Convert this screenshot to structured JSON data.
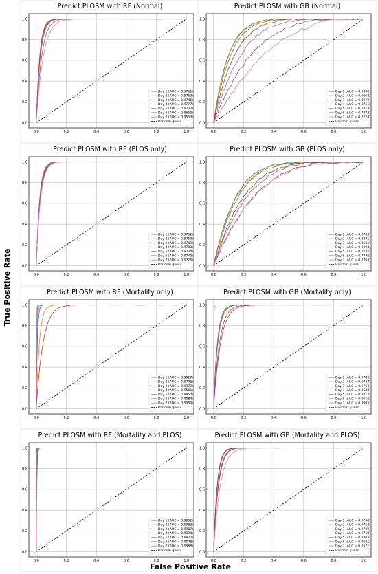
{
  "figure": {
    "ylabel": "True Positive Rate",
    "xlabel": "False Positive Rate"
  },
  "series_colors": [
    "#1f77b4",
    "#ff7f0e",
    "#2ca02c",
    "#d62728",
    "#9467bd",
    "#8c564b",
    "#e377c2"
  ],
  "random_guess_color": "#000000",
  "chart_data": [
    {
      "type": "line",
      "title": "Predict PLOSM with RF (Normal)",
      "xlim": [
        0,
        1
      ],
      "ylim": [
        0,
        1
      ],
      "x_ticks": [
        "0.0",
        "0.2",
        "0.4",
        "0.6",
        "0.8",
        "1.0"
      ],
      "y_ticks": [
        "0.0",
        "0.2",
        "0.4",
        "0.6",
        "0.8",
        "1.0"
      ],
      "grid": true,
      "legend_position": "lower-right",
      "series": [
        {
          "name": "Day 1 (AUC = 0.9761)",
          "auc": 0.9761
        },
        {
          "name": "Day 2 (AUC = 0.9763)",
          "auc": 0.9763
        },
        {
          "name": "Day 3 (AUC = 0.9746)",
          "auc": 0.9746
        },
        {
          "name": "Day 4 (AUC = 0.9777)",
          "auc": 0.9777
        },
        {
          "name": "Day 5 (AUC = 0.9732)",
          "auc": 0.9732
        },
        {
          "name": "Day 6 (AUC = 0.9653)",
          "auc": 0.9653
        },
        {
          "name": "Day 7 (AUC = 0.9553)",
          "auc": 0.9553
        }
      ],
      "baseline": {
        "name": "Random guess",
        "x": [
          0,
          1
        ],
        "y": [
          0,
          1
        ]
      }
    },
    {
      "type": "line",
      "title": "Predict PLOSM with GB (Normal)",
      "xlim": [
        0,
        1
      ],
      "ylim": [
        0,
        1
      ],
      "x_ticks": [
        "0.0",
        "0.2",
        "0.4",
        "0.6",
        "0.8",
        "1.0"
      ],
      "y_ticks": [
        "0.0",
        "0.2",
        "0.4",
        "0.6",
        "0.8",
        "1.0"
      ],
      "grid": true,
      "legend_position": "lower-right",
      "series": [
        {
          "name": "Day 1 (AUC = 0.9096)",
          "auc": 0.9096
        },
        {
          "name": "Day 2 (AUC = 0.9068)",
          "auc": 0.9068
        },
        {
          "name": "Day 3 (AUC = 0.8972)",
          "auc": 0.8972
        },
        {
          "name": "Day 4 (AUC = 0.8751)",
          "auc": 0.8751
        },
        {
          "name": "Day 5 (AUC = 0.8413)",
          "auc": 0.8413
        },
        {
          "name": "Day 6 (AUC = 0.7873)",
          "auc": 0.7873
        },
        {
          "name": "Day 7 (AUC = 0.7224)",
          "auc": 0.7224
        }
      ],
      "baseline": {
        "name": "Random guess",
        "x": [
          0,
          1
        ],
        "y": [
          0,
          1
        ]
      }
    },
    {
      "type": "line",
      "title": "Predict PLOSM with RF (PLOS only)",
      "xlim": [
        0,
        1
      ],
      "ylim": [
        0,
        1
      ],
      "x_ticks": [
        "0.0",
        "0.2",
        "0.4",
        "0.6",
        "0.8",
        "1.0"
      ],
      "y_ticks": [
        "0.0",
        "0.2",
        "0.4",
        "0.6",
        "0.8",
        "1.0"
      ],
      "grid": true,
      "legend_position": "lower-right",
      "series": [
        {
          "name": "Day 1 (AUC = 0.9762)",
          "auc": 0.9762
        },
        {
          "name": "Day 2 (AUC = 0.9759)",
          "auc": 0.9759
        },
        {
          "name": "Day 3 (AUC = 0.9749)",
          "auc": 0.9749
        },
        {
          "name": "Day 4 (AUC = 0.9783)",
          "auc": 0.9783
        },
        {
          "name": "Day 5 (AUC = 0.9774)",
          "auc": 0.9774
        },
        {
          "name": "Day 6 (AUC = 0.9740)",
          "auc": 0.974
        },
        {
          "name": "Day 7 (AUC = 0.9726)",
          "auc": 0.9726
        }
      ],
      "baseline": {
        "name": "Random guess",
        "x": [
          0,
          1
        ],
        "y": [
          0,
          1
        ]
      }
    },
    {
      "type": "line",
      "title": "Predict PLOSM with GB (PLOS only)",
      "xlim": [
        0,
        1
      ],
      "ylim": [
        0,
        1
      ],
      "x_ticks": [
        "0.0",
        "0.2",
        "0.4",
        "0.6",
        "0.8",
        "1.0"
      ],
      "y_ticks": [
        "0.0",
        "0.2",
        "0.4",
        "0.6",
        "0.8",
        "1.0"
      ],
      "grid": true,
      "legend_position": "lower-right",
      "series": [
        {
          "name": "Day 1 (AUC = 0.8709)",
          "auc": 0.8709
        },
        {
          "name": "Day 2 (AUC = 0.8671)",
          "auc": 0.8671
        },
        {
          "name": "Day 3 (AUC = 0.8581)",
          "auc": 0.8581
        },
        {
          "name": "Day 4 (AUC = 0.8298)",
          "auc": 0.8298
        },
        {
          "name": "Day 5 (AUC = 0.8126)",
          "auc": 0.8126
        },
        {
          "name": "Day 6 (AUC = 0.7776)",
          "auc": 0.7776
        },
        {
          "name": "Day 7 (AUC = 0.7763)",
          "auc": 0.7763
        }
      ],
      "baseline": {
        "name": "Random guess",
        "x": [
          0,
          1
        ],
        "y": [
          0,
          1
        ]
      }
    },
    {
      "type": "line",
      "title": "Predict PLOSM with RF (Mortality only)",
      "xlim": [
        0,
        1
      ],
      "ylim": [
        0,
        1
      ],
      "x_ticks": [
        "0.0",
        "0.2",
        "0.4",
        "0.6",
        "0.8",
        "1.0"
      ],
      "y_ticks": [
        "0.0",
        "0.2",
        "0.4",
        "0.6",
        "0.8",
        "1.0"
      ],
      "grid": true,
      "legend_position": "lower-right",
      "series": [
        {
          "name": "Day 1 (AUC = 0.9927)",
          "auc": 0.9927
        },
        {
          "name": "Day 2 (AUC = 0.9795)",
          "auc": 0.9795
        },
        {
          "name": "Day 3 (AUC = 0.9972)",
          "auc": 0.9972
        },
        {
          "name": "Day 4 (AUC = 0.9561)",
          "auc": 0.9561
        },
        {
          "name": "Day 5 (AUC = 0.9950)",
          "auc": 0.995
        },
        {
          "name": "Day 6 (AUC = 0.9984)",
          "auc": 0.9984
        },
        {
          "name": "Day 7 (AUC = 0.9980)",
          "auc": 0.998
        }
      ],
      "baseline": {
        "name": "Random guess",
        "x": [
          0,
          1
        ],
        "y": [
          0,
          1
        ]
      }
    },
    {
      "type": "line",
      "title": "Predict PLOSM with GB (Mortality only)",
      "xlim": [
        0,
        1
      ],
      "ylim": [
        0,
        1
      ],
      "x_ticks": [
        "0.0",
        "0.2",
        "0.4",
        "0.6",
        "0.8",
        "1.0"
      ],
      "y_ticks": [
        "0.0",
        "0.2",
        "0.4",
        "0.6",
        "0.8",
        "1.0"
      ],
      "grid": true,
      "legend_position": "lower-right",
      "series": [
        {
          "name": "Day 1 (AUC = 0.9745)",
          "auc": 0.9745
        },
        {
          "name": "Day 2 (AUC = 0.9737)",
          "auc": 0.9737
        },
        {
          "name": "Day 3 (AUC = 0.9753)",
          "auc": 0.9753
        },
        {
          "name": "Day 4 (AUC = 0.9548)",
          "auc": 0.9548
        },
        {
          "name": "Day 5 (AUC = 0.9717)",
          "auc": 0.9717
        },
        {
          "name": "Day 6 (AUC = 0.9616)",
          "auc": 0.9616
        },
        {
          "name": "Day 7 (AUC = 0.9985)",
          "auc": 0.9985
        }
      ],
      "baseline": {
        "name": "Random guess",
        "x": [
          0,
          1
        ],
        "y": [
          0,
          1
        ]
      }
    },
    {
      "type": "line",
      "title": "Predict PLOSM with RF (Mortality and PLOS)",
      "xlim": [
        0,
        1
      ],
      "ylim": [
        0,
        1
      ],
      "x_ticks": [
        "0.0",
        "0.2",
        "0.4",
        "0.6",
        "0.8",
        "1.0"
      ],
      "y_ticks": [
        "0.0",
        "0.2",
        "0.4",
        "0.6",
        "0.8",
        "1.0"
      ],
      "grid": true,
      "legend_position": "lower-right",
      "series": [
        {
          "name": "Day 1 (AUC = 0.9962)",
          "auc": 0.9962
        },
        {
          "name": "Day 2 (AUC = 0.9983)",
          "auc": 0.9983
        },
        {
          "name": "Day 3 (AUC = 0.9987)",
          "auc": 0.9987
        },
        {
          "name": "Day 4 (AUC = 0.9994)",
          "auc": 0.9994
        },
        {
          "name": "Day 5 (AUC = 0.9977)",
          "auc": 0.9977
        },
        {
          "name": "Day 6 (AUC = 0.9978)",
          "auc": 0.9978
        },
        {
          "name": "Day 7 (AUC = 0.9988)",
          "auc": 0.9988
        }
      ],
      "baseline": {
        "name": "Random guess",
        "x": [
          0,
          1
        ],
        "y": [
          0,
          1
        ]
      }
    },
    {
      "type": "line",
      "title": "Predict PLOSM with GB (Mortality and PLOS)",
      "xlim": [
        0,
        1
      ],
      "ylim": [
        0,
        1
      ],
      "x_ticks": [
        "0.0",
        "0.2",
        "0.4",
        "0.6",
        "0.8",
        "1.0"
      ],
      "y_ticks": [
        "0.0",
        "0.2",
        "0.4",
        "0.6",
        "0.8",
        "1.0"
      ],
      "grid": true,
      "legend_position": "lower-right",
      "series": [
        {
          "name": "Day 1 (AUC = 0.9768)",
          "auc": 0.9768
        },
        {
          "name": "Day 2 (AUC = 0.9754)",
          "auc": 0.9754
        },
        {
          "name": "Day 3 (AUC = 0.9702)",
          "auc": 0.9702
        },
        {
          "name": "Day 4 (AUC = 0.9758)",
          "auc": 0.9758
        },
        {
          "name": "Day 5 (AUC = 0.9704)",
          "auc": 0.9704
        },
        {
          "name": "Day 6 (AUC = 0.9681)",
          "auc": 0.9681
        },
        {
          "name": "Day 7 (AUC = 0.9571)",
          "auc": 0.9571
        }
      ],
      "baseline": {
        "name": "Random guess",
        "x": [
          0,
          1
        ],
        "y": [
          0,
          1
        ]
      }
    }
  ]
}
